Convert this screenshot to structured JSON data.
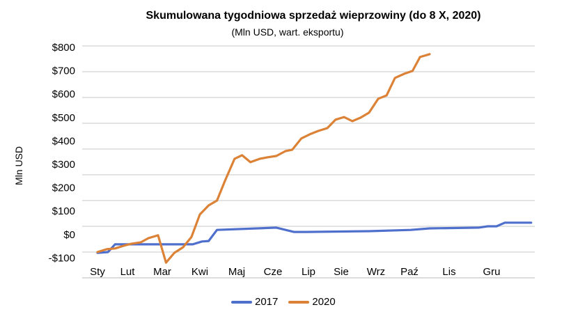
{
  "chart_data": {
    "type": "line",
    "title": "Skumulowana tygodniowa sprzedaż wieprzowiny (do 8 X, 2020)",
    "subtitle": "(Mln USD, wart. eksportu)",
    "xlabel": "",
    "ylabel": "Mln USD",
    "ylim": [
      -100,
      800
    ],
    "y_ticks": [
      "$800",
      "$700",
      "$600",
      "$500",
      "$400",
      "$300",
      "$200",
      "$100",
      "$0",
      "-$100"
    ],
    "categories": [
      "Sty",
      "Lut",
      "Mar",
      "Kwi",
      "Maj",
      "Cze",
      "Lip",
      "Sie",
      "Wrz",
      "Paź",
      "Lis",
      "Gru"
    ],
    "grid": true,
    "legend_position": "bottom",
    "series": [
      {
        "name": "2017",
        "color": "#4F6FCC",
        "points": [
          [
            0,
            -3
          ],
          [
            1.25,
            0
          ],
          [
            2.1,
            30
          ],
          [
            11.4,
            30
          ],
          [
            12.5,
            41
          ],
          [
            13.3,
            43
          ],
          [
            14.3,
            86
          ],
          [
            21.4,
            95
          ],
          [
            23.5,
            78
          ],
          [
            25,
            78
          ],
          [
            32.5,
            81
          ],
          [
            37.5,
            86
          ],
          [
            39.75,
            92
          ],
          [
            45.6,
            95
          ],
          [
            46.7,
            100
          ],
          [
            47.75,
            100
          ],
          [
            48.75,
            114
          ],
          [
            51.9,
            114
          ]
        ]
      },
      {
        "name": "2020",
        "color": "#DC8236",
        "points": [
          [
            0,
            0
          ],
          [
            1.1,
            11
          ],
          [
            2.1,
            14
          ],
          [
            3.1,
            24
          ],
          [
            4,
            32
          ],
          [
            5.2,
            38
          ],
          [
            6.1,
            54
          ],
          [
            7.25,
            65
          ],
          [
            8.2,
            -41
          ],
          [
            9.2,
            -3
          ],
          [
            10.25,
            19
          ],
          [
            11.25,
            59
          ],
          [
            12.25,
            146
          ],
          [
            13.3,
            181
          ],
          [
            14.3,
            200
          ],
          [
            15.25,
            276
          ],
          [
            16.4,
            362
          ],
          [
            17.3,
            376
          ],
          [
            18.3,
            349
          ],
          [
            19.4,
            362
          ],
          [
            20.4,
            368
          ],
          [
            21.4,
            373
          ],
          [
            22.5,
            392
          ],
          [
            23.3,
            397
          ],
          [
            24.4,
            441
          ],
          [
            25.4,
            457
          ],
          [
            26.4,
            470
          ],
          [
            27.5,
            481
          ],
          [
            28.5,
            514
          ],
          [
            29.5,
            524
          ],
          [
            30.5,
            508
          ],
          [
            31.5,
            522
          ],
          [
            32.5,
            541
          ],
          [
            33.6,
            595
          ],
          [
            34.6,
            608
          ],
          [
            35.6,
            676
          ],
          [
            36.7,
            692
          ],
          [
            37.7,
            703
          ],
          [
            38.6,
            757
          ],
          [
            39.75,
            768
          ]
        ]
      }
    ]
  }
}
